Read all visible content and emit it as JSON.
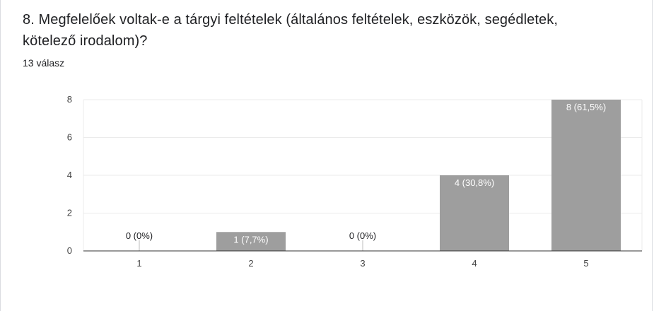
{
  "question": {
    "title": "8. Megfelelőek voltak-e a tárgyi feltételek (általános feltételek, eszközök, segédletek, kötelező irodalom)?",
    "response_count": "13 válasz"
  },
  "colors": {
    "bar": "#9e9e9e",
    "gridline": "#ebebeb",
    "axis": "#333333",
    "tick_text": "#444444",
    "label_inside": "#ffffff",
    "label_outside": "#202124"
  },
  "chart_data": {
    "type": "bar",
    "categories": [
      "1",
      "2",
      "3",
      "4",
      "5"
    ],
    "values": [
      0,
      1,
      0,
      4,
      8
    ],
    "data_labels": [
      "0 (0%)",
      "1 (7,7%)",
      "0 (0%)",
      "4 (30,8%)",
      "8 (61,5%)"
    ],
    "ylim": [
      0,
      8
    ],
    "yticks": [
      0,
      2,
      4,
      6,
      8
    ],
    "xlabel": "",
    "ylabel": "",
    "grid": true,
    "legend": "none"
  }
}
